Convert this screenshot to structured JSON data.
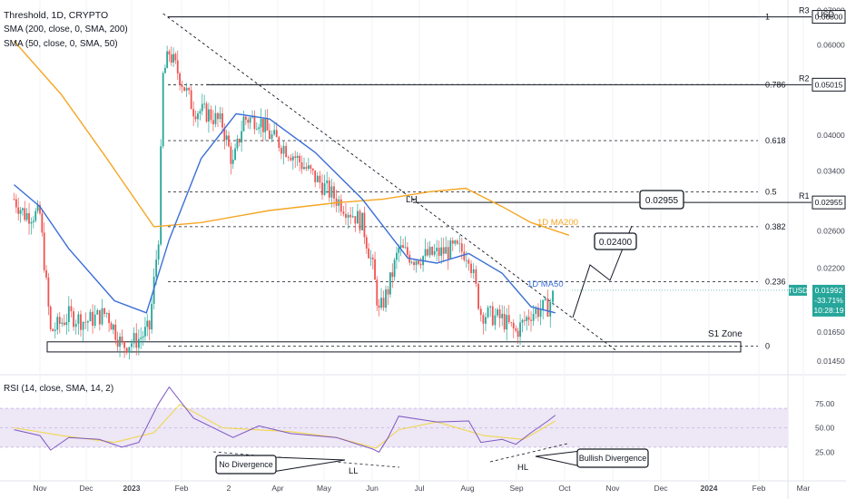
{
  "header": {
    "symbol_line": "Threshold, 1D, CRYPTO",
    "indicator_1": "SMA (200, close, 0, SMA, 200)",
    "indicator_2": "SMA (50, close, 0, SMA, 50)",
    "rsi_legend": "RSI (14, close, SMA, 14, 2)",
    "currency": "USD"
  },
  "colors": {
    "up": "#26a69a",
    "down": "#ef5350",
    "ma200": "#f5a623",
    "ma50": "#3b6fd6",
    "rsi": "#7e57c2",
    "rsi_ma": "#f2d74e",
    "rsi_band": "#ede7f6",
    "price_tag": "#26a69a"
  },
  "chart_data": [
    {
      "type": "candlestick",
      "title": "Threshold, 1D, CRYPTO",
      "y_scale": "log",
      "ylim": [
        0.0138,
        0.071
      ],
      "price_axis_ticks": [
        "0.07000",
        "0.06000",
        "0.05015",
        "0.04000",
        "0.03400",
        "0.02955",
        "0.02600",
        "0.02200",
        "0.01992",
        "0.01650",
        "0.01450"
      ],
      "x_ticks": [
        "Nov",
        "Dec",
        "2023",
        "Feb",
        "2",
        "Apr",
        "May",
        "Jun",
        "Jul",
        "Aug",
        "Sep",
        "Oct",
        "Nov",
        "Dec",
        "2024",
        "Feb",
        "Mar"
      ],
      "series_close": [
        [
          "2022-10-15",
          0.03
        ],
        [
          "2022-10-22",
          0.028
        ],
        [
          "2022-11-01",
          0.028
        ],
        [
          "2022-11-08",
          0.0165
        ],
        [
          "2022-11-20",
          0.0178
        ],
        [
          "2022-12-01",
          0.0173
        ],
        [
          "2022-12-15",
          0.018
        ],
        [
          "2022-12-25",
          0.0155
        ],
        [
          "2023-01-05",
          0.016
        ],
        [
          "2023-01-12",
          0.0168
        ],
        [
          "2023-01-18",
          0.0255
        ],
        [
          "2023-01-21",
          0.052
        ],
        [
          "2023-01-25",
          0.058
        ],
        [
          "2023-02-01",
          0.052
        ],
        [
          "2023-02-10",
          0.045
        ],
        [
          "2023-02-20",
          0.044
        ],
        [
          "2023-03-01",
          0.042
        ],
        [
          "2023-03-08",
          0.035
        ],
        [
          "2023-03-15",
          0.043
        ],
        [
          "2023-03-25",
          0.043
        ],
        [
          "2023-04-01",
          0.04
        ],
        [
          "2023-04-15",
          0.037
        ],
        [
          "2023-05-01",
          0.033
        ],
        [
          "2023-05-15",
          0.03
        ],
        [
          "2023-06-01",
          0.027
        ],
        [
          "2023-06-08",
          0.022
        ],
        [
          "2023-06-12",
          0.018
        ],
        [
          "2023-06-18",
          0.02
        ],
        [
          "2023-06-25",
          0.024
        ],
        [
          "2023-07-05",
          0.023
        ],
        [
          "2023-07-20",
          0.0235
        ],
        [
          "2023-08-01",
          0.024
        ],
        [
          "2023-08-10",
          0.0235
        ],
        [
          "2023-08-18",
          0.018
        ],
        [
          "2023-09-01",
          0.0175
        ],
        [
          "2023-09-10",
          0.0165
        ],
        [
          "2023-09-20",
          0.018
        ],
        [
          "2023-10-01",
          0.0185
        ],
        [
          "2023-10-06",
          0.0199
        ]
      ],
      "sma200": [
        [
          "2022-10-15",
          0.061
        ],
        [
          "2022-11-15",
          0.048
        ],
        [
          "2022-12-15",
          0.036
        ],
        [
          "2023-01-15",
          0.0265
        ],
        [
          "2023-02-15",
          0.027
        ],
        [
          "2023-04-01",
          0.0285
        ],
        [
          "2023-05-15",
          0.0295
        ],
        [
          "2023-06-15",
          0.03
        ],
        [
          "2023-07-15",
          0.031
        ],
        [
          "2023-08-08",
          0.0315
        ],
        [
          "2023-09-01",
          0.029
        ],
        [
          "2023-09-20",
          0.027
        ],
        [
          "2023-10-15",
          0.0255
        ]
      ],
      "sma50": [
        [
          "2022-10-15",
          0.032
        ],
        [
          "2022-11-01",
          0.029
        ],
        [
          "2022-11-20",
          0.024
        ],
        [
          "2022-12-20",
          0.019
        ],
        [
          "2023-01-10",
          0.018
        ],
        [
          "2023-01-25",
          0.025
        ],
        [
          "2023-02-15",
          0.036
        ],
        [
          "2023-03-10",
          0.044
        ],
        [
          "2023-04-01",
          0.043
        ],
        [
          "2023-05-01",
          0.037
        ],
        [
          "2023-06-01",
          0.03
        ],
        [
          "2023-07-01",
          0.023
        ],
        [
          "2023-07-20",
          0.0225
        ],
        [
          "2023-08-10",
          0.0235
        ],
        [
          "2023-09-01",
          0.0215
        ],
        [
          "2023-09-20",
          0.0185
        ],
        [
          "2023-10-06",
          0.018
        ]
      ],
      "fib_levels": [
        {
          "label": "1",
          "price": 0.068
        },
        {
          "label": "0.786",
          "price": 0.05015
        },
        {
          "label": "0.618",
          "price": 0.039
        },
        {
          "label": "0.5",
          "price": 0.031
        },
        {
          "label": "0.382",
          "price": 0.0265
        },
        {
          "label": "0.236",
          "price": 0.0207
        },
        {
          "label": "0",
          "price": 0.0155
        }
      ],
      "resistance": [
        {
          "name": "R3",
          "price": 0.068,
          "price_label": "0.06800"
        },
        {
          "name": "R2",
          "price": 0.05015,
          "price_label": "0.05015"
        },
        {
          "name": "R1",
          "price": 0.02955,
          "price_label": "0.02955"
        }
      ],
      "support_zone": {
        "name": "S1 Zone",
        "low": 0.0151,
        "high": 0.0158
      },
      "trendline": {
        "label": "LH",
        "from": [
          "2023-01-21",
          0.069
        ],
        "to": [
          "2023-11-15",
          0.0152
        ]
      },
      "annotations": [
        {
          "text": "1D MA200",
          "color": "#f5a623"
        },
        {
          "text": "1D MA50",
          "color": "#3b6fd6"
        },
        {
          "text": "0.02400"
        },
        {
          "text": "0.02955"
        }
      ],
      "last_price": {
        "label": "TUSD",
        "value": "0.01992",
        "change": "-33.71%",
        "countdown": "10:28:19"
      }
    },
    {
      "type": "line",
      "title": "RSI (14, close, SMA, 14, 2)",
      "ylim": [
        0,
        100
      ],
      "band": [
        30,
        70
      ],
      "y_ticks": [
        "75.00",
        "50.00",
        "25.00"
      ],
      "rsi": [
        [
          "2022-10-15",
          48
        ],
        [
          "2022-11-01",
          42
        ],
        [
          "2022-11-08",
          27
        ],
        [
          "2022-11-20",
          40
        ],
        [
          "2022-12-10",
          38
        ],
        [
          "2022-12-25",
          30
        ],
        [
          "2023-01-05",
          35
        ],
        [
          "2023-01-18",
          75
        ],
        [
          "2023-01-25",
          92
        ],
        [
          "2023-02-10",
          60
        ],
        [
          "2023-03-08",
          40
        ],
        [
          "2023-03-25",
          52
        ],
        [
          "2023-04-15",
          44
        ],
        [
          "2023-05-15",
          40
        ],
        [
          "2023-06-08",
          28
        ],
        [
          "2023-06-12",
          25
        ],
        [
          "2023-06-18",
          40
        ],
        [
          "2023-06-25",
          62
        ],
        [
          "2023-07-20",
          56
        ],
        [
          "2023-08-10",
          57
        ],
        [
          "2023-08-18",
          35
        ],
        [
          "2023-09-01",
          38
        ],
        [
          "2023-09-10",
          33
        ],
        [
          "2023-09-20",
          45
        ],
        [
          "2023-10-01",
          57
        ],
        [
          "2023-10-06",
          63
        ]
      ],
      "rsi_ma": [
        [
          "2022-10-15",
          50
        ],
        [
          "2022-11-15",
          42
        ],
        [
          "2022-12-20",
          35
        ],
        [
          "2023-01-15",
          45
        ],
        [
          "2023-02-01",
          74
        ],
        [
          "2023-03-01",
          50
        ],
        [
          "2023-04-15",
          46
        ],
        [
          "2023-05-15",
          40
        ],
        [
          "2023-06-10",
          29
        ],
        [
          "2023-06-25",
          48
        ],
        [
          "2023-07-20",
          56
        ],
        [
          "2023-08-20",
          42
        ],
        [
          "2023-09-15",
          38
        ],
        [
          "2023-10-06",
          57
        ]
      ],
      "annotations": [
        {
          "text": "No Divergence"
        },
        {
          "text": "LL"
        },
        {
          "text": "Bullish Divergence"
        },
        {
          "text": "HL"
        }
      ]
    }
  ]
}
